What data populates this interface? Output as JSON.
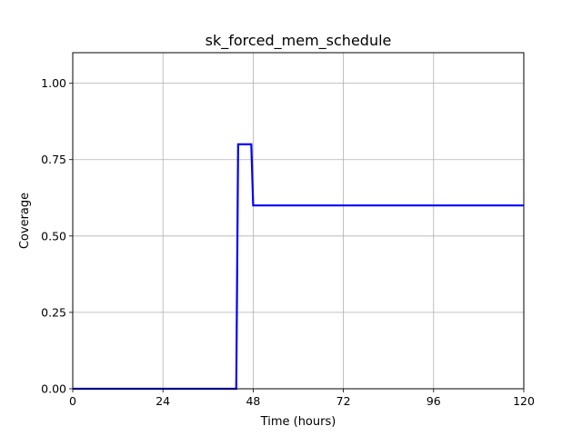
{
  "chart_data": {
    "type": "line",
    "title": "sk_forced_mem_schedule",
    "xlabel": "Time (hours)",
    "ylabel": "Coverage",
    "xlim": [
      0,
      120
    ],
    "ylim": [
      0,
      1.1
    ],
    "xticks": [
      0,
      24,
      48,
      72,
      96,
      120
    ],
    "xtick_labels": [
      "0",
      "24",
      "48",
      "72",
      "96",
      "120"
    ],
    "yticks": [
      0.0,
      0.25,
      0.5,
      0.75,
      1.0
    ],
    "ytick_labels": [
      "0.00",
      "0.25",
      "0.50",
      "0.75",
      "1.00"
    ],
    "grid": true,
    "series": [
      {
        "color": "#0000ff",
        "x": [
          0,
          43.5,
          44,
          47.5,
          48,
          120
        ],
        "y": [
          0.0,
          0.0,
          0.8,
          0.8,
          0.6,
          0.6
        ]
      }
    ]
  }
}
